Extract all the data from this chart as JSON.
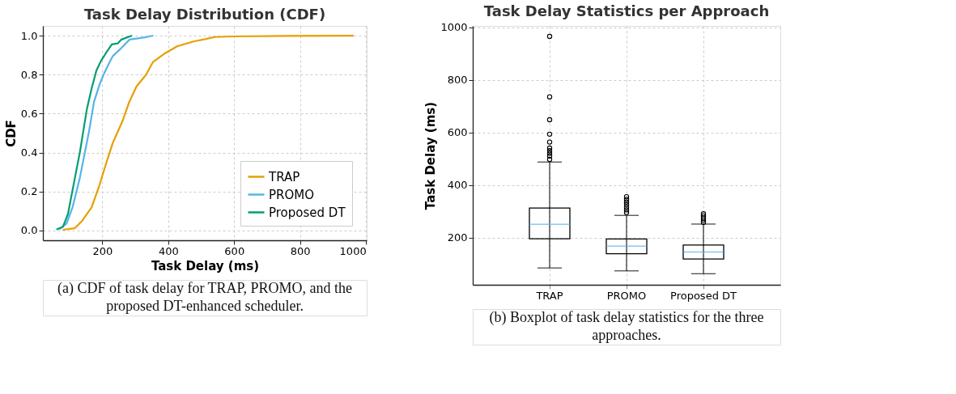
{
  "chart_data": [
    {
      "type": "line",
      "title": "Task Delay Distribution (CDF)",
      "xlabel": "Task Delay (ms)",
      "ylabel": "CDF",
      "xlim": [
        20,
        1002
      ],
      "ylim": [
        -0.05,
        1.05
      ],
      "xticks": [
        200,
        400,
        600,
        800,
        1000
      ],
      "yticks": [
        {
          "value": 0,
          "label": "0.0"
        },
        {
          "value": 0.2,
          "label": "0.2"
        },
        {
          "value": 0.4,
          "label": "0.4"
        },
        {
          "value": 0.6,
          "label": "0.6"
        },
        {
          "value": 0.8,
          "label": "0.8"
        },
        {
          "value": 1.0,
          "label": "1.0"
        }
      ],
      "grid": true,
      "legend": "bottom right",
      "line_style": "solid",
      "marker": "none",
      "series": [
        {
          "name": "TRAP",
          "color": "#e69f00",
          "x": [
            80,
            117,
            139,
            168,
            189,
            211,
            232,
            261,
            282,
            304,
            333,
            354,
            391,
            427,
            477,
            520,
            541,
            599,
            765,
            963
          ],
          "values": [
            0.004,
            0.012,
            0.05,
            0.12,
            0.22,
            0.34,
            0.45,
            0.56,
            0.66,
            0.74,
            0.8,
            0.865,
            0.91,
            0.945,
            0.97,
            0.985,
            0.993,
            0.996,
            0.999,
            1.0
          ]
        },
        {
          "name": "PROMO",
          "color": "#56b4e9",
          "x": [
            70,
            92,
            110,
            132,
            146,
            160,
            175,
            193,
            204,
            218,
            232,
            254,
            283,
            326,
            355
          ],
          "values": [
            0.006,
            0.037,
            0.12,
            0.27,
            0.39,
            0.51,
            0.66,
            0.755,
            0.8,
            0.85,
            0.895,
            0.93,
            0.98,
            0.99,
            1.0
          ]
        },
        {
          "name": "Proposed DT",
          "color": "#009e73",
          "x": [
            61,
            81,
            96,
            117,
            132,
            153,
            168,
            182,
            196,
            211,
            229,
            247,
            258,
            290
          ],
          "values": [
            0.005,
            0.02,
            0.085,
            0.27,
            0.4,
            0.62,
            0.73,
            0.82,
            0.87,
            0.91,
            0.955,
            0.96,
            0.98,
            1.0
          ]
        }
      ],
      "annotations": [
        "(a) CDF of task delay for TRAP, PROMO, and the proposed DT-enhanced scheduler."
      ]
    },
    {
      "type": "box",
      "title": "Task Delay Statistics per Approach",
      "ylabel": "Task Delay (ms)",
      "categories": [
        "TRAP",
        "PROMO",
        "Proposed DT"
      ],
      "ylim": [
        20,
        1005
      ],
      "yticks": [
        200,
        400,
        600,
        800,
        1000
      ],
      "grid": true,
      "series": [
        {
          "color": "#56b4e9",
          "boxes": [
            {
              "low": 84,
              "q1": 195,
              "median": 250,
              "q3": 312,
              "high": 487,
              "outliers": [
                497,
                510,
                520,
                530,
                540,
                563,
                593,
                648,
                735,
                965
              ]
            },
            {
              "low": 73,
              "q1": 138,
              "median": 167,
              "q3": 194,
              "high": 284,
              "outliers": [
                295,
                305,
                315,
                325,
                335,
                345,
                355
              ]
            },
            {
              "low": 62,
              "q1": 118,
              "median": 145,
              "q3": 171,
              "high": 251,
              "outliers": [
                258,
                266,
                274,
                282,
                290
              ]
            }
          ]
        }
      ],
      "annotations": [
        "(b) Boxplot of task delay statistics for the three approaches."
      ]
    }
  ]
}
